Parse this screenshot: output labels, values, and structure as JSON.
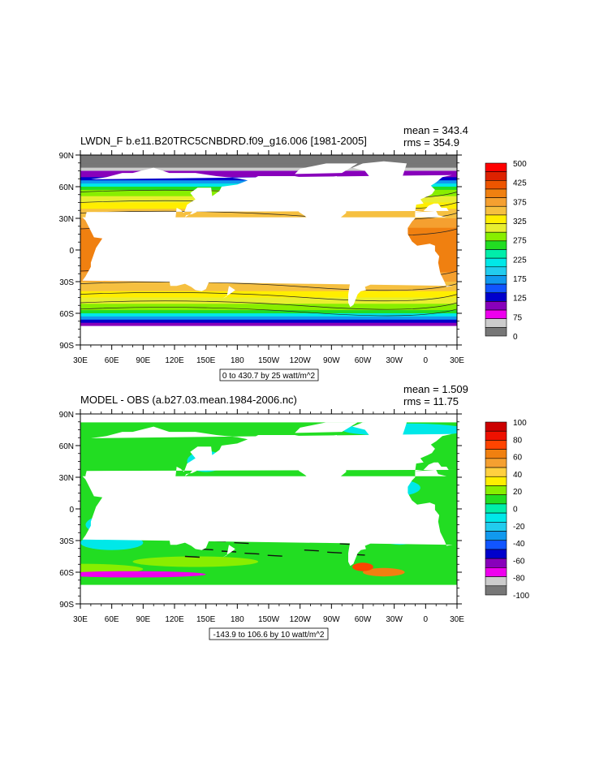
{
  "panels": [
    {
      "title": "LWDN_F b.e11.B20TRC5CNBDRD.f09_g16.006 [1981-2005]",
      "mean": "mean = 343.4",
      "rms": "rms = 354.9",
      "subtitle": "0 to 430.7 by 25 watt/m^2",
      "colorbar_labels": [
        "500",
        "425",
        "375",
        "325",
        "275",
        "225",
        "175",
        "125",
        "75",
        "0"
      ],
      "colorbar_colors": [
        "#ff0000",
        "#dd2200",
        "#ee5500",
        "#f08010",
        "#f5a030",
        "#f6c040",
        "#ffee00",
        "#e8ee30",
        "#88ee00",
        "#22dd22",
        "#00eeaa",
        "#00e8e8",
        "#22ccee",
        "#1199ee",
        "#1155ff",
        "#0000cc",
        "#8800bb",
        "#ee00ee",
        "#cccccc",
        "#777777"
      ],
      "field": "lwdn"
    },
    {
      "title": "MODEL - OBS (a.b27.03.mean.1984-2006.nc)",
      "mean": "mean = 1.509",
      "rms": "rms = 11.75",
      "subtitle": "-143.9 to 106.6 by 10 watt/m^2",
      "colorbar_labels": [
        "100",
        "80",
        "60",
        "40",
        "20",
        "0",
        "-20",
        "-40",
        "-60",
        "-80",
        "-100"
      ],
      "colorbar_colors": [
        "#cc0000",
        "#ee1100",
        "#ff4400",
        "#f08010",
        "#f5a030",
        "#ffd040",
        "#ffee00",
        "#88ee00",
        "#22dd22",
        "#00eeaa",
        "#00e8e8",
        "#22ccee",
        "#1199ee",
        "#1155ff",
        "#0000cc",
        "#8800bb",
        "#ee00ee",
        "#cccccc",
        "#777777"
      ],
      "field": "diff"
    }
  ],
  "lat_labels": [
    "90N",
    "60N",
    "30N",
    "0",
    "30S",
    "60S",
    "90S"
  ],
  "lon_labels": [
    "30E",
    "60E",
    "90E",
    "120E",
    "150E",
    "180",
    "150W",
    "120W",
    "90W",
    "60W",
    "30W",
    "0",
    "30E"
  ]
}
